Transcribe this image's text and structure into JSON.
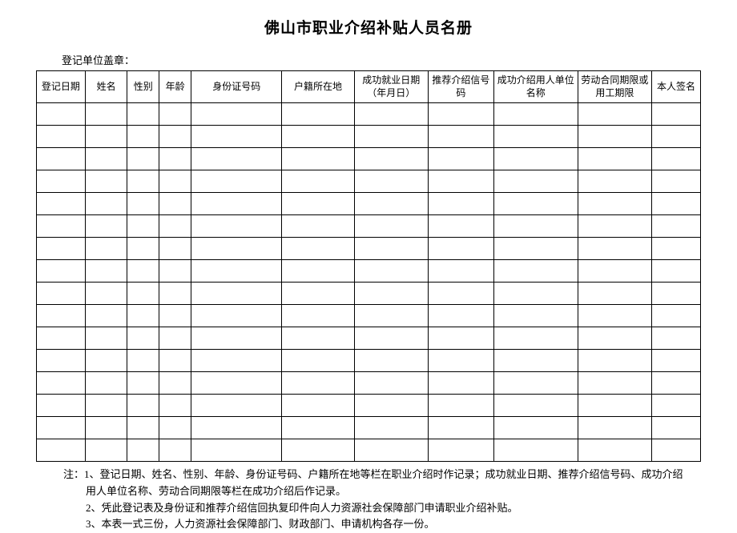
{
  "title": "佛山市职业介绍补贴人员名册",
  "stamp_label": "登记单位盖章：",
  "columns": {
    "date": "登记日期",
    "name": "姓名",
    "gender": "性别",
    "age": "年龄",
    "id": "身份证号码",
    "location": "户籍所在地",
    "jobdate": "成功就业日期（年月日）",
    "refno": "推荐介绍信号码",
    "employer": "成功介绍用人单位名称",
    "contract": "劳动合同期限或用工期限",
    "sign": "本人签名"
  },
  "row_count": 16,
  "notes": {
    "line1": "注：1、登记日期、姓名、性别、年龄、身份证号码、户籍所在地等栏在职业介绍时作记录；成功就业日期、推荐介绍信号码、成功介绍用人单位名称、劳动合同期限等栏在成功介绍后作记录。",
    "line2": "2、凭此登记表及身份证和推荐介绍信回执复印件向人力资源社会保障部门申请职业介绍补贴。",
    "line3": "3、本表一式三份，人力资源社会保障部门、财政部门、申请机构各存一份。"
  },
  "styling": {
    "background_color": "#ffffff",
    "border_color": "#000000",
    "title_fontsize": 19,
    "body_fontsize": 13,
    "header_fontsize": 12,
    "header_row_height": 40,
    "data_row_height": 28
  }
}
